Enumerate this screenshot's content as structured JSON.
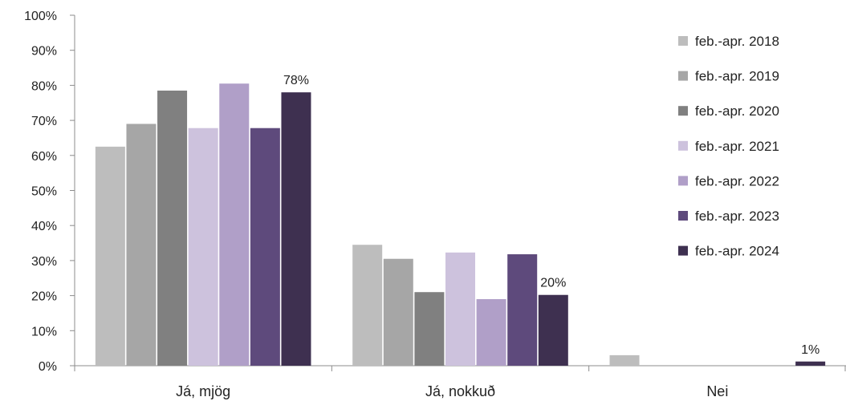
{
  "chart_data": {
    "type": "bar",
    "categories": [
      "Já, mjög",
      "Já, nokkuð",
      "Nei"
    ],
    "series": [
      {
        "name": "feb.-apr. 2018",
        "color": "#bdbdbd",
        "values": [
          62.5,
          34.5,
          3.0
        ]
      },
      {
        "name": "feb.-apr. 2019",
        "color": "#a6a6a6",
        "values": [
          69.0,
          30.5,
          0
        ]
      },
      {
        "name": "feb.-apr. 2020",
        "color": "#808080",
        "values": [
          78.5,
          21.0,
          0
        ]
      },
      {
        "name": "feb.-apr. 2021",
        "color": "#cdc2dd",
        "values": [
          67.8,
          32.3,
          0
        ]
      },
      {
        "name": "feb.-apr. 2022",
        "color": "#b09fc8",
        "values": [
          80.5,
          19.0,
          0
        ]
      },
      {
        "name": "feb.-apr. 2023",
        "color": "#5e4a7c",
        "values": [
          67.8,
          31.8,
          0
        ]
      },
      {
        "name": "feb.-apr. 2024",
        "color": "#3e3050",
        "values": [
          78.0,
          20.2,
          1.2
        ]
      }
    ],
    "data_labels": [
      {
        "series": 6,
        "category": 0,
        "text": "78%"
      },
      {
        "series": 6,
        "category": 1,
        "text": "20%"
      },
      {
        "series": 6,
        "category": 2,
        "text": "1%"
      }
    ],
    "y_ticks": [
      "0%",
      "10%",
      "20%",
      "30%",
      "40%",
      "50%",
      "60%",
      "70%",
      "80%",
      "90%",
      "100%"
    ],
    "ylim": [
      0,
      100
    ],
    "title": "",
    "xlabel": "",
    "ylabel": "",
    "grid": false,
    "legend_position": "right"
  }
}
